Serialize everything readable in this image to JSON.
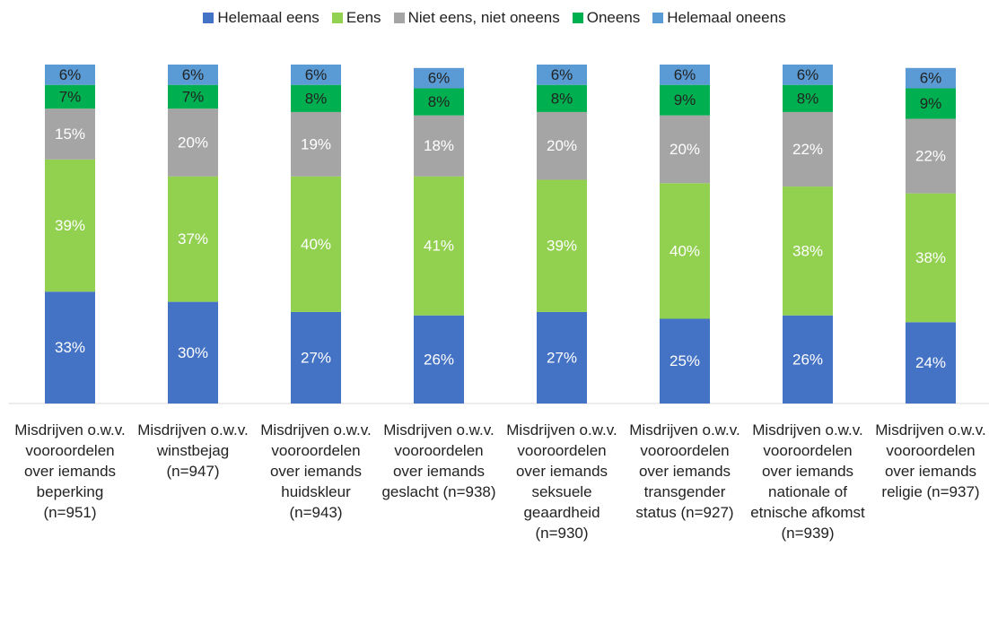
{
  "chart_data": {
    "type": "stacked_bar",
    "categories": [
      "Misdrijven o.w.v. vooroordelen over iemands beperking (n=951)",
      "Misdrijven o.w.v. winstbejag (n=947)",
      "Misdrijven o.w.v. vooroordelen over iemands huidskleur (n=943)",
      "Misdrijven o.w.v. vooroordelen over iemands geslacht (n=938)",
      "Misdrijven o.w.v. vooroordelen over iemands seksuele geaardheid (n=930)",
      "Misdrijven o.w.v. vooroordelen over iemands transgender status (n=927)",
      "Misdrijven o.w.v. vooroordelen over iemands nationale of etnische afkomst (n=939)",
      "Misdrijven o.w.v. vooroordelen over iemands religie (n=937)"
    ],
    "series": [
      {
        "name": "Helemaal eens",
        "color": "#4472c4",
        "label_color": "#ffffff",
        "values": [
          33,
          30,
          27,
          26,
          27,
          25,
          26,
          24
        ],
        "value_labels": [
          "33%",
          "30%",
          "27%",
          "26%",
          "27%",
          "25%",
          "26%",
          "24%"
        ]
      },
      {
        "name": "Eens",
        "color": "#92d050",
        "label_color": "#ffffff",
        "values": [
          39,
          37,
          40,
          41,
          39,
          40,
          38,
          38
        ],
        "value_labels": [
          "39%",
          "37%",
          "40%",
          "41%",
          "39%",
          "40%",
          "38%",
          "38%"
        ]
      },
      {
        "name": "Niet eens, niet oneens",
        "color": "#a5a5a5",
        "label_color": "#ffffff",
        "values": [
          15,
          20,
          19,
          18,
          20,
          20,
          22,
          22
        ],
        "value_labels": [
          "15%",
          "20%",
          "19%",
          "18%",
          "20%",
          "20%",
          "22%",
          "22%"
        ]
      },
      {
        "name": "Oneens",
        "color": "#00b050",
        "label_color": "#222222",
        "values": [
          7,
          7,
          8,
          8,
          8,
          9,
          8,
          9
        ],
        "value_labels": [
          "7%",
          "7%",
          "8%",
          "8%",
          "8%",
          "9%",
          "8%",
          "9%"
        ]
      },
      {
        "name": "Helemaal oneens",
        "color": "#5b9bd5",
        "label_color": "#222222",
        "values": [
          6,
          6,
          6,
          6,
          6,
          6,
          6,
          6
        ],
        "value_labels": [
          "6%",
          "6%",
          "6%",
          "6%",
          "6%",
          "6%",
          "6%",
          "6%"
        ]
      }
    ],
    "ylim": [
      0,
      100
    ],
    "legend": "top"
  }
}
